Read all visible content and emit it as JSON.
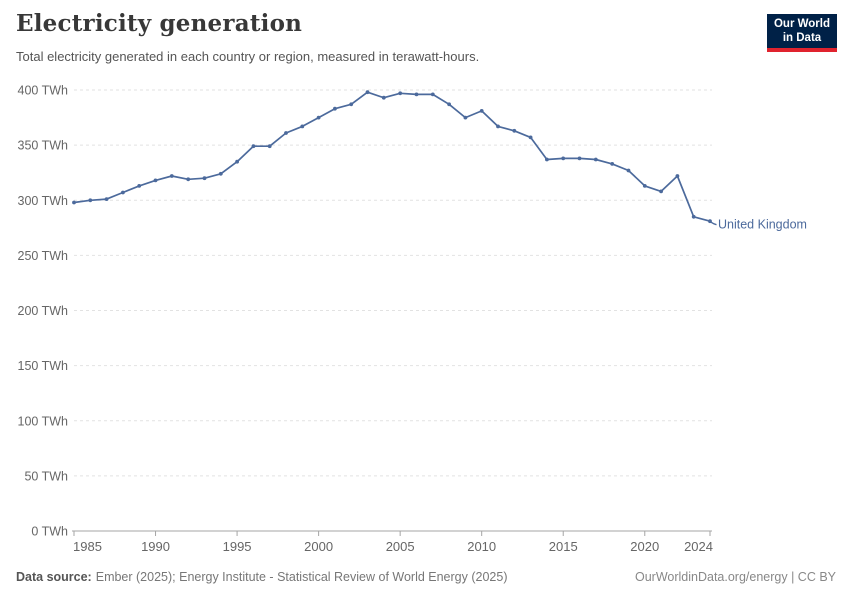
{
  "header": {
    "title": "Electricity generation",
    "subtitle": "Total electricity generated in each country or region, measured in terawatt-hours."
  },
  "logo": {
    "line1": "Our World",
    "line2": "in Data",
    "bg_color": "#002147",
    "accent_color": "#e0232e"
  },
  "chart_data": {
    "type": "line",
    "title": "Electricity generation",
    "unit": "TWh",
    "xlabel": "",
    "ylabel": "",
    "xlim": [
      1985,
      2024
    ],
    "ylim": [
      0,
      400
    ],
    "grid": "dashed-horizontal",
    "legend": "end-of-line-label",
    "xticks": [
      1985,
      1990,
      1995,
      2000,
      2005,
      2010,
      2015,
      2020,
      2024
    ],
    "yticks": [
      0,
      50,
      100,
      150,
      200,
      250,
      300,
      350,
      400
    ],
    "x": [
      1985,
      1986,
      1987,
      1988,
      1989,
      1990,
      1991,
      1992,
      1993,
      1994,
      1995,
      1996,
      1997,
      1998,
      1999,
      2000,
      2001,
      2002,
      2003,
      2004,
      2005,
      2006,
      2007,
      2008,
      2009,
      2010,
      2011,
      2012,
      2013,
      2014,
      2015,
      2016,
      2017,
      2018,
      2019,
      2020,
      2021,
      2022,
      2023,
      2024
    ],
    "series": [
      {
        "name": "United Kingdom",
        "color": "#4c6a9c",
        "values": [
          298,
          300,
          301,
          307,
          313,
          318,
          322,
          319,
          320,
          324,
          335,
          349,
          349,
          361,
          367,
          375,
          383,
          387,
          398,
          393,
          397,
          396,
          396,
          387,
          375,
          381,
          367,
          363,
          357,
          337,
          338,
          338,
          337,
          333,
          327,
          313,
          308,
          322,
          285,
          281
        ]
      }
    ],
    "axis_color": "#a5a5a5",
    "grid_color": "#e2e2e2",
    "tick_label_color": "#666666"
  },
  "footer": {
    "source_label": "Data source:",
    "source_text": "Ember (2025); Energy Institute - Statistical Review of World Energy (2025)",
    "right_text": "OurWorldinData.org/energy | CC BY"
  }
}
